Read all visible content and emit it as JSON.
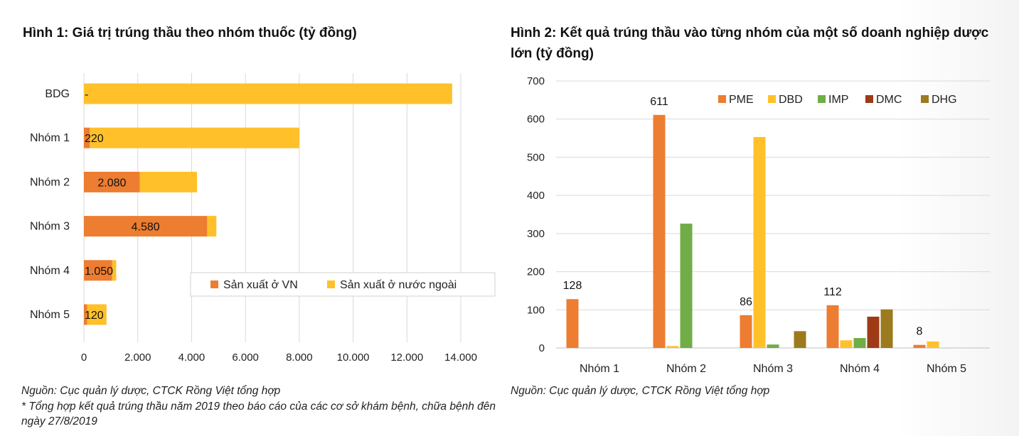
{
  "figure1": {
    "title": "Hình 1: Giá trị trúng thầu theo nhóm thuốc (tỷ đồng)",
    "source": "Nguồn: Cục quản lý dược, CTCK Rồng Việt tổng hợp",
    "note": "* Tổng hợp kết quả trúng thầu năm 2019 theo báo cáo của các cơ sở khám bệnh, chữa bệnh đên ngày 27/8/2019"
  },
  "figure2": {
    "title": "Hình 2: Kết quả trúng thầu vào từng nhóm của một số doanh nghiệp dược lớn (tỷ đồng)",
    "source": "Nguồn: Cục quản lý dược, CTCK Rồng Việt tổng hợp"
  },
  "chart_data": [
    {
      "type": "bar",
      "orientation": "horizontal",
      "stacked": true,
      "categories": [
        "BDG",
        "Nhóm 1",
        "Nhóm 2",
        "Nhóm 3",
        "Nhóm 4",
        "Nhóm 5"
      ],
      "series": [
        {
          "name": "Sản xuất ở VN",
          "values": [
            0,
            220,
            2080,
            4580,
            1050,
            120
          ],
          "labels": [
            "-",
            "220",
            "2.080",
            "4.580",
            "1.050",
            "120"
          ],
          "color": "#ED7D31"
        },
        {
          "name": "Sản xuất ở nước ngoài",
          "values": [
            13680,
            7780,
            2120,
            340,
            150,
            720
          ],
          "color": "#FFC02A"
        }
      ],
      "xlim": [
        0,
        14000
      ],
      "xticks": [
        0,
        2000,
        4000,
        6000,
        8000,
        10000,
        12000,
        14000
      ],
      "xtick_labels": [
        "0",
        "2.000",
        "4.000",
        "6.000",
        "8.000",
        "10.000",
        "12.000",
        "14.000"
      ],
      "grid": "vertical",
      "legend": "bottom-right"
    },
    {
      "type": "bar",
      "categories": [
        "Nhóm 1",
        "Nhóm 2",
        "Nhóm 3",
        "Nhóm 4",
        "Nhóm 5"
      ],
      "series": [
        {
          "name": "PME",
          "values": [
            128,
            611,
            86,
            112,
            8
          ],
          "color": "#ED7D31"
        },
        {
          "name": "DBD",
          "values": [
            0,
            5,
            553,
            20,
            17
          ],
          "color": "#FFC02A"
        },
        {
          "name": "IMP",
          "values": [
            0,
            326,
            9,
            26,
            0
          ],
          "color": "#70AD47"
        },
        {
          "name": "DMC",
          "values": [
            0,
            0,
            0,
            82,
            0
          ],
          "color": "#9E3B17"
        },
        {
          "name": "DHG",
          "values": [
            0,
            0,
            44,
            101,
            0
          ],
          "color": "#9C7A1E"
        }
      ],
      "data_labels": [
        {
          "category": "Nhóm 1",
          "text": "128"
        },
        {
          "category": "Nhóm 2",
          "text": "611"
        },
        {
          "category": "Nhóm 3",
          "text": "86"
        },
        {
          "category": "Nhóm 4",
          "text": "112"
        },
        {
          "category": "Nhóm 5",
          "text": "8"
        }
      ],
      "ylim": [
        0,
        700
      ],
      "yticks": [
        0,
        100,
        200,
        300,
        400,
        500,
        600,
        700
      ],
      "grid": "horizontal",
      "legend": "top-right"
    }
  ]
}
